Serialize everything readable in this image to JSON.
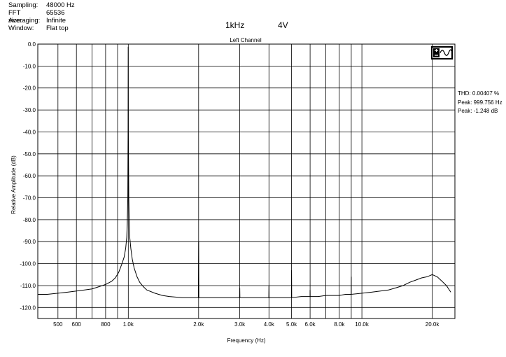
{
  "header": {
    "rows": [
      {
        "key": "Sampling:",
        "value": "48000 Hz"
      },
      {
        "key": "FFT size:",
        "value": "65536"
      },
      {
        "key": "Averaging:",
        "value": "Infinite"
      },
      {
        "key": "Window:",
        "value": "Flat top"
      }
    ],
    "freq_tag": "1kHz",
    "level_tag": "4V"
  },
  "stats": {
    "thd": "THD: 0.00407 %",
    "peak_freq": "Peak: 999.756 Hz",
    "peak_level": "Peak: -1.248 dB"
  },
  "icon": "sine-wave-logo-icon",
  "colors": {
    "plot_bg": "#ffffff",
    "grid": "#000000",
    "trace": "#000000"
  },
  "chart_data": {
    "type": "line",
    "title": "Left Channel",
    "xlabel": "Frequency (Hz)",
    "ylabel": "Relative Amplitude (dB)",
    "x_scale": "log",
    "xlim": [
      410,
      25000
    ],
    "ylim": [
      -125,
      0
    ],
    "grid": true,
    "y_ticks": [
      0,
      -10,
      -20,
      -30,
      -40,
      -50,
      -60,
      -70,
      -80,
      -90,
      -100,
      -110,
      -120
    ],
    "y_tick_labels": [
      "0.0",
      "-10.0",
      "-20.0",
      "-30.0",
      "-40.0",
      "-50.0",
      "-60.0",
      "-70.0",
      "-80.0",
      "-90.0",
      "-100.0",
      "-110.0",
      "-120.0"
    ],
    "x_grid": [
      500,
      600,
      700,
      800,
      900,
      1000,
      2000,
      3000,
      4000,
      5000,
      6000,
      7000,
      8000,
      9000,
      10000,
      20000
    ],
    "x_ticks": [
      500,
      600,
      800,
      1000,
      2000,
      3000,
      4000,
      5000,
      6000,
      8000,
      10000,
      20000
    ],
    "x_tick_labels": [
      "500",
      "600",
      "800",
      "1.0k",
      "2.0k",
      "3.0k",
      "4.0k",
      "5.0k",
      "6.0k",
      "8.0k",
      "10.0k",
      "20.0k"
    ],
    "series": [
      {
        "x": [
          410,
          450,
          500,
          550,
          600,
          650,
          700,
          750,
          800,
          850,
          880,
          910,
          940,
          960,
          975,
          985,
          990,
          995,
          998,
          999.756,
          1001,
          1005,
          1010,
          1015,
          1025,
          1040,
          1060,
          1090,
          1120,
          1160,
          1200,
          1300,
          1400,
          1500,
          1700,
          1900,
          1995,
          2000,
          2005,
          2200,
          2500,
          2800,
          2995,
          3000,
          3005,
          3300,
          3600,
          3995,
          4000,
          4005,
          4500,
          4995,
          5000,
          5005,
          5500,
          5995,
          6000,
          6005,
          6500,
          7000,
          7500,
          8000,
          8500,
          8995,
          9000,
          9005,
          10000,
          11000,
          12000,
          13000,
          14000,
          15000,
          16000,
          17000,
          18000,
          19000,
          20000,
          21000,
          22000,
          23000,
          24000
        ],
        "y": [
          -114,
          -114,
          -113.5,
          -113,
          -112.5,
          -112,
          -111.5,
          -110.5,
          -109.5,
          -108,
          -106.5,
          -104,
          -100,
          -97,
          -93,
          -88,
          -82,
          -70,
          -40,
          -1.248,
          -40,
          -70,
          -82,
          -88,
          -93,
          -98,
          -102,
          -106,
          -108.5,
          -110.5,
          -112,
          -113.5,
          -114.5,
          -115,
          -115.5,
          -115.5,
          -115.5,
          -90,
          -115.5,
          -115.5,
          -115.5,
          -115.5,
          -115.5,
          -111,
          -115.5,
          -115.5,
          -115.5,
          -115.5,
          -110,
          -115.5,
          -115.5,
          -115.5,
          -103,
          -115.5,
          -115,
          -115,
          -112,
          -115,
          -115,
          -114.5,
          -114.5,
          -114.5,
          -114,
          -114,
          -106,
          -114,
          -113.5,
          -113,
          -112.5,
          -112,
          -111,
          -110,
          -108.5,
          -107.5,
          -106.5,
          -106,
          -105,
          -106,
          -108,
          -110,
          -113
        ]
      }
    ]
  }
}
